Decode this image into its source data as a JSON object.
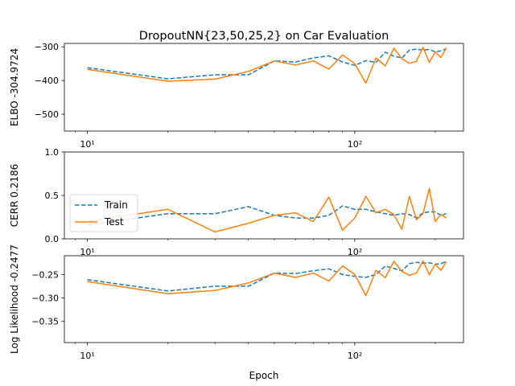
{
  "chart_data": {
    "type": "line",
    "title": "DropoutNN{23,50,25,2} on Car Evaluation",
    "xlabel": "Epoch",
    "x_scale": "log",
    "colors": {
      "Train": "#1f77b4",
      "Test": "#ff7f0e"
    },
    "panels": [
      {
        "ylabel": "ELBO -304.9724",
        "xlim": [
          8.2,
          255
        ],
        "ylim": [
          -550,
          -290
        ],
        "yticks": [
          -500,
          -400,
          -300
        ],
        "ytick_labels": [
          "−500",
          "−400",
          "−300"
        ],
        "xticks": [
          10,
          100
        ],
        "xtick_labels": [
          "10¹",
          "10²"
        ],
        "series": [
          {
            "name": "Train",
            "style": "dashed",
            "x": [
              10,
              20,
              30,
              40,
              50,
              60,
              70,
              80,
              90,
              100,
              110,
              120,
              130,
              140,
              150,
              160,
              170,
              180,
              190,
              200,
              210,
              220
            ],
            "y": [
              -362,
              -395,
              -383,
              -383,
              -342,
              -345,
              -333,
              -327,
              -345,
              -355,
              -341,
              -346,
              -316,
              -328,
              -333,
              -310,
              -307,
              -310,
              -308,
              -315,
              -312,
              -306
            ]
          },
          {
            "name": "Test",
            "style": "solid",
            "x": [
              10,
              20,
              30,
              40,
              50,
              60,
              70,
              80,
              90,
              100,
              110,
              120,
              130,
              140,
              150,
              160,
              170,
              180,
              190,
              200,
              210,
              220
            ],
            "y": [
              -367,
              -402,
              -396,
              -373,
              -342,
              -354,
              -342,
              -366,
              -324,
              -350,
              -408,
              -333,
              -357,
              -304,
              -335,
              -349,
              -343,
              -302,
              -346,
              -315,
              -332,
              -303
            ]
          }
        ]
      },
      {
        "ylabel": "CERR 0.2186",
        "xlim": [
          8.2,
          255
        ],
        "ylim": [
          0.0,
          1.0
        ],
        "yticks": [
          0.0,
          0.5,
          1.0
        ],
        "ytick_labels": [
          "0.0",
          "0.5",
          "1.0"
        ],
        "xticks": [
          10,
          100
        ],
        "xtick_labels": [
          "10¹",
          "10²"
        ],
        "legend": {
          "position": "center-left",
          "entries": [
            "Train",
            "Test"
          ]
        },
        "series": [
          {
            "name": "Train",
            "style": "dashed",
            "x": [
              10,
              20,
              30,
              40,
              50,
              60,
              70,
              80,
              90,
              100,
              110,
              120,
              130,
              140,
              150,
              160,
              170,
              180,
              190,
              200,
              210,
              220
            ],
            "y": [
              0.16,
              0.29,
              0.29,
              0.37,
              0.27,
              0.24,
              0.24,
              0.27,
              0.38,
              0.34,
              0.34,
              0.31,
              0.29,
              0.27,
              0.29,
              0.28,
              0.24,
              0.3,
              0.31,
              0.31,
              0.27,
              0.29
            ]
          },
          {
            "name": "Test",
            "style": "solid",
            "x": [
              10,
              20,
              30,
              40,
              50,
              60,
              70,
              80,
              90,
              100,
              110,
              120,
              130,
              140,
              150,
              160,
              170,
              180,
              190,
              200,
              210,
              220
            ],
            "y": [
              0.2,
              0.34,
              0.08,
              0.18,
              0.27,
              0.3,
              0.2,
              0.48,
              0.1,
              0.24,
              0.49,
              0.3,
              0.34,
              0.28,
              0.11,
              0.49,
              0.22,
              0.29,
              0.58,
              0.2,
              0.28,
              0.24
            ]
          }
        ]
      },
      {
        "ylabel": "Log Likelihood -0.2477",
        "xlim": [
          8.2,
          255
        ],
        "ylim": [
          -0.395,
          -0.21
        ],
        "yticks": [
          -0.35,
          -0.3,
          -0.25
        ],
        "ytick_labels": [
          "−0.35",
          "−0.30",
          "−0.25"
        ],
        "xticks": [
          10,
          100
        ],
        "xtick_labels": [
          "10¹",
          "10²"
        ],
        "series": [
          {
            "name": "Train",
            "style": "dashed",
            "x": [
              10,
              20,
              30,
              40,
              50,
              60,
              70,
              80,
              90,
              100,
              110,
              120,
              130,
              140,
              150,
              160,
              170,
              180,
              190,
              200,
              210,
              220
            ],
            "y": [
              -0.261,
              -0.285,
              -0.275,
              -0.275,
              -0.247,
              -0.248,
              -0.242,
              -0.238,
              -0.25,
              -0.254,
              -0.256,
              -0.25,
              -0.232,
              -0.237,
              -0.242,
              -0.227,
              -0.224,
              -0.226,
              -0.225,
              -0.228,
              -0.227,
              -0.222
            ]
          },
          {
            "name": "Test",
            "style": "solid",
            "x": [
              10,
              20,
              30,
              40,
              50,
              60,
              70,
              80,
              90,
              100,
              110,
              120,
              130,
              140,
              150,
              160,
              170,
              180,
              190,
              200,
              210,
              220
            ],
            "y": [
              -0.265,
              -0.291,
              -0.284,
              -0.268,
              -0.247,
              -0.256,
              -0.247,
              -0.264,
              -0.232,
              -0.25,
              -0.295,
              -0.241,
              -0.257,
              -0.222,
              -0.243,
              -0.252,
              -0.247,
              -0.221,
              -0.25,
              -0.228,
              -0.241,
              -0.222
            ]
          }
        ]
      }
    ]
  }
}
